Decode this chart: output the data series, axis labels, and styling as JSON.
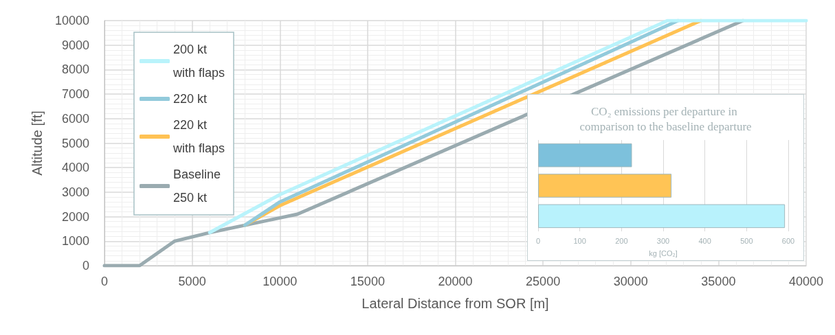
{
  "chart_data": [
    {
      "type": "line",
      "xlabel": "Lateral Distance from SOR [m]",
      "ylabel": "Altitude [ft]",
      "xlim": [
        0,
        40000
      ],
      "xticks": [
        0,
        5000,
        10000,
        15000,
        20000,
        25000,
        30000,
        35000,
        40000
      ],
      "ylim": [
        0,
        10000
      ],
      "yticks": [
        0,
        1000,
        2000,
        3000,
        4000,
        5000,
        6000,
        7000,
        8000,
        9000,
        10000
      ],
      "grid": true,
      "legend": "top left",
      "series": [
        {
          "name": "Baseline 250 kt",
          "color": "#9aabb0",
          "x": [
            0,
            2000,
            4000,
            6000,
            8000,
            10000,
            11000,
            36400
          ],
          "values": [
            0,
            0,
            1000,
            1350,
            1650,
            1950,
            2100,
            10000
          ]
        },
        {
          "name": "220 kt with flaps",
          "color": "#ffc254",
          "x": [
            8000,
            10000,
            34000
          ],
          "values": [
            1650,
            2450,
            10000
          ]
        },
        {
          "name": "220 kt",
          "color": "#92cadb",
          "x": [
            8000,
            10000,
            32700
          ],
          "values": [
            1650,
            2600,
            10000
          ]
        },
        {
          "name": "200 kt with flaps",
          "color": "#b9f3fb",
          "x": [
            6000,
            10000,
            32100,
            40000
          ],
          "values": [
            1350,
            2900,
            10000,
            10000
          ]
        }
      ]
    },
    {
      "type": "bar",
      "orientation": "horizontal",
      "title": "CO₂ emissions per departure in comparison to the baseline departure",
      "xlabel": "kg [CO₂]",
      "categories": [
        null,
        null,
        null
      ],
      "values": [
        225,
        320,
        592
      ],
      "colors": [
        "#7dc1dc",
        "#ffc455",
        "#b8f2fc"
      ],
      "xlim": [
        0,
        600
      ],
      "xticks": [
        0,
        100,
        200,
        300,
        400,
        500,
        600
      ],
      "grid": "x"
    }
  ]
}
